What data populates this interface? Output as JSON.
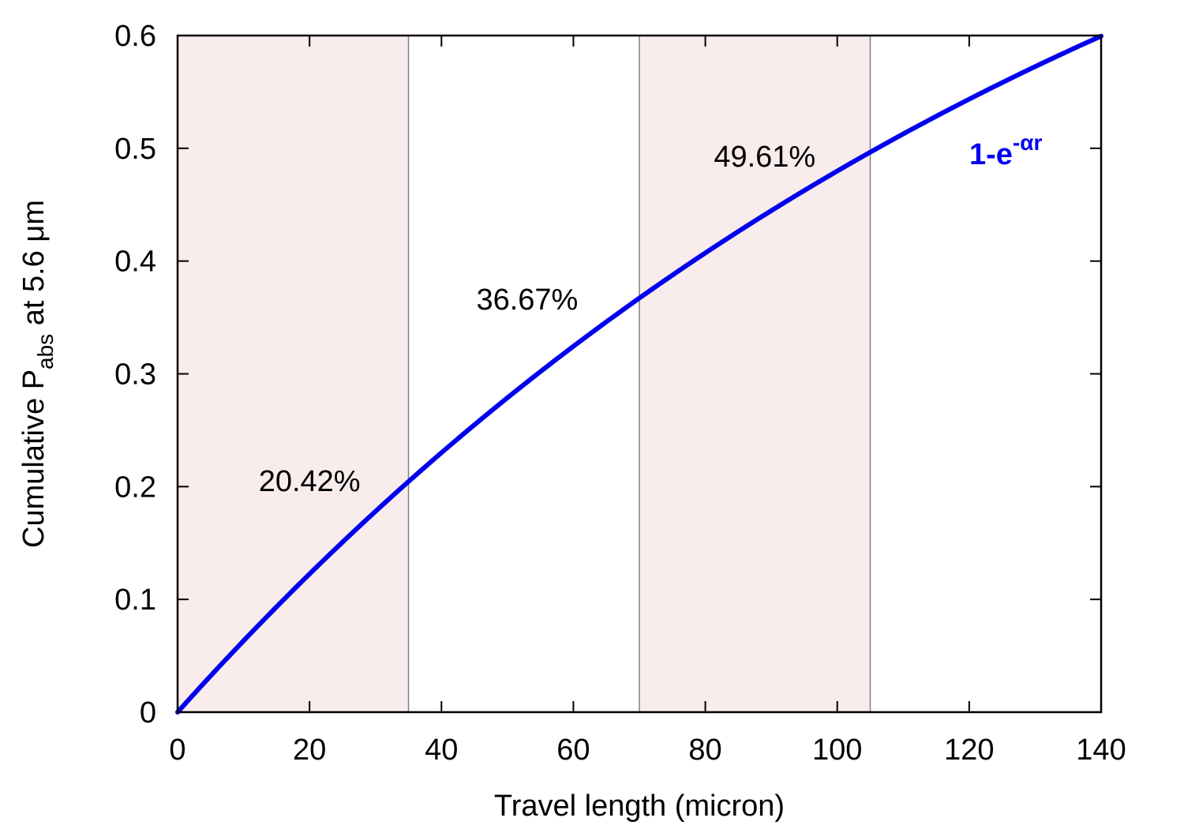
{
  "chart_data": {
    "type": "line",
    "xlabel": "Travel length (micron)",
    "ylabel": {
      "prefix": "Cumulative P",
      "subscript": "abs",
      "suffix": " at 5.6 μm"
    },
    "xlim": [
      0,
      140
    ],
    "ylim": [
      0,
      0.6
    ],
    "xticks": [
      0,
      20,
      40,
      60,
      80,
      100,
      120,
      140
    ],
    "yticks": [
      0,
      0.1,
      0.2,
      0.3,
      0.4,
      0.5,
      0.6
    ],
    "xtick_labels": [
      "0",
      "20",
      "40",
      "60",
      "80",
      "100",
      "120",
      "140"
    ],
    "ytick_labels": [
      "0",
      "0.1",
      "0.2",
      "0.3",
      "0.4",
      "0.5",
      "0.6"
    ],
    "grid": false,
    "legend_placement": "top-right",
    "series": [
      {
        "name": "1-e^(-αr)",
        "name_parts": {
          "base": "1-e",
          "superscript": "-αr"
        },
        "color": "#0000ee",
        "function": "1-exp(-alpha*x)",
        "alpha": 0.006536,
        "x": [
          0,
          10,
          20,
          30,
          35,
          40,
          50,
          60,
          70,
          80,
          90,
          100,
          105,
          110,
          120,
          130,
          140
        ],
        "y": [
          0,
          0.0633,
          0.1226,
          0.1781,
          0.2042,
          0.2301,
          0.2787,
          0.3242,
          0.3667,
          0.4066,
          0.4443,
          0.4799,
          0.4961,
          0.513,
          0.5437,
          0.5725,
          0.6
        ]
      }
    ],
    "shaded_bands": [
      {
        "x_range": [
          0,
          35
        ],
        "color": "#f8ecec"
      },
      {
        "x_range": [
          70,
          105
        ],
        "color": "#f8ecec"
      }
    ],
    "vertical_lines": [
      35,
      70,
      105
    ],
    "annotations": [
      {
        "text": "20.42%",
        "x": 20,
        "y": 0.205
      },
      {
        "text": "36.67%",
        "x": 53,
        "y": 0.366
      },
      {
        "text": "49.61%",
        "x": 89,
        "y": 0.493
      }
    ]
  }
}
